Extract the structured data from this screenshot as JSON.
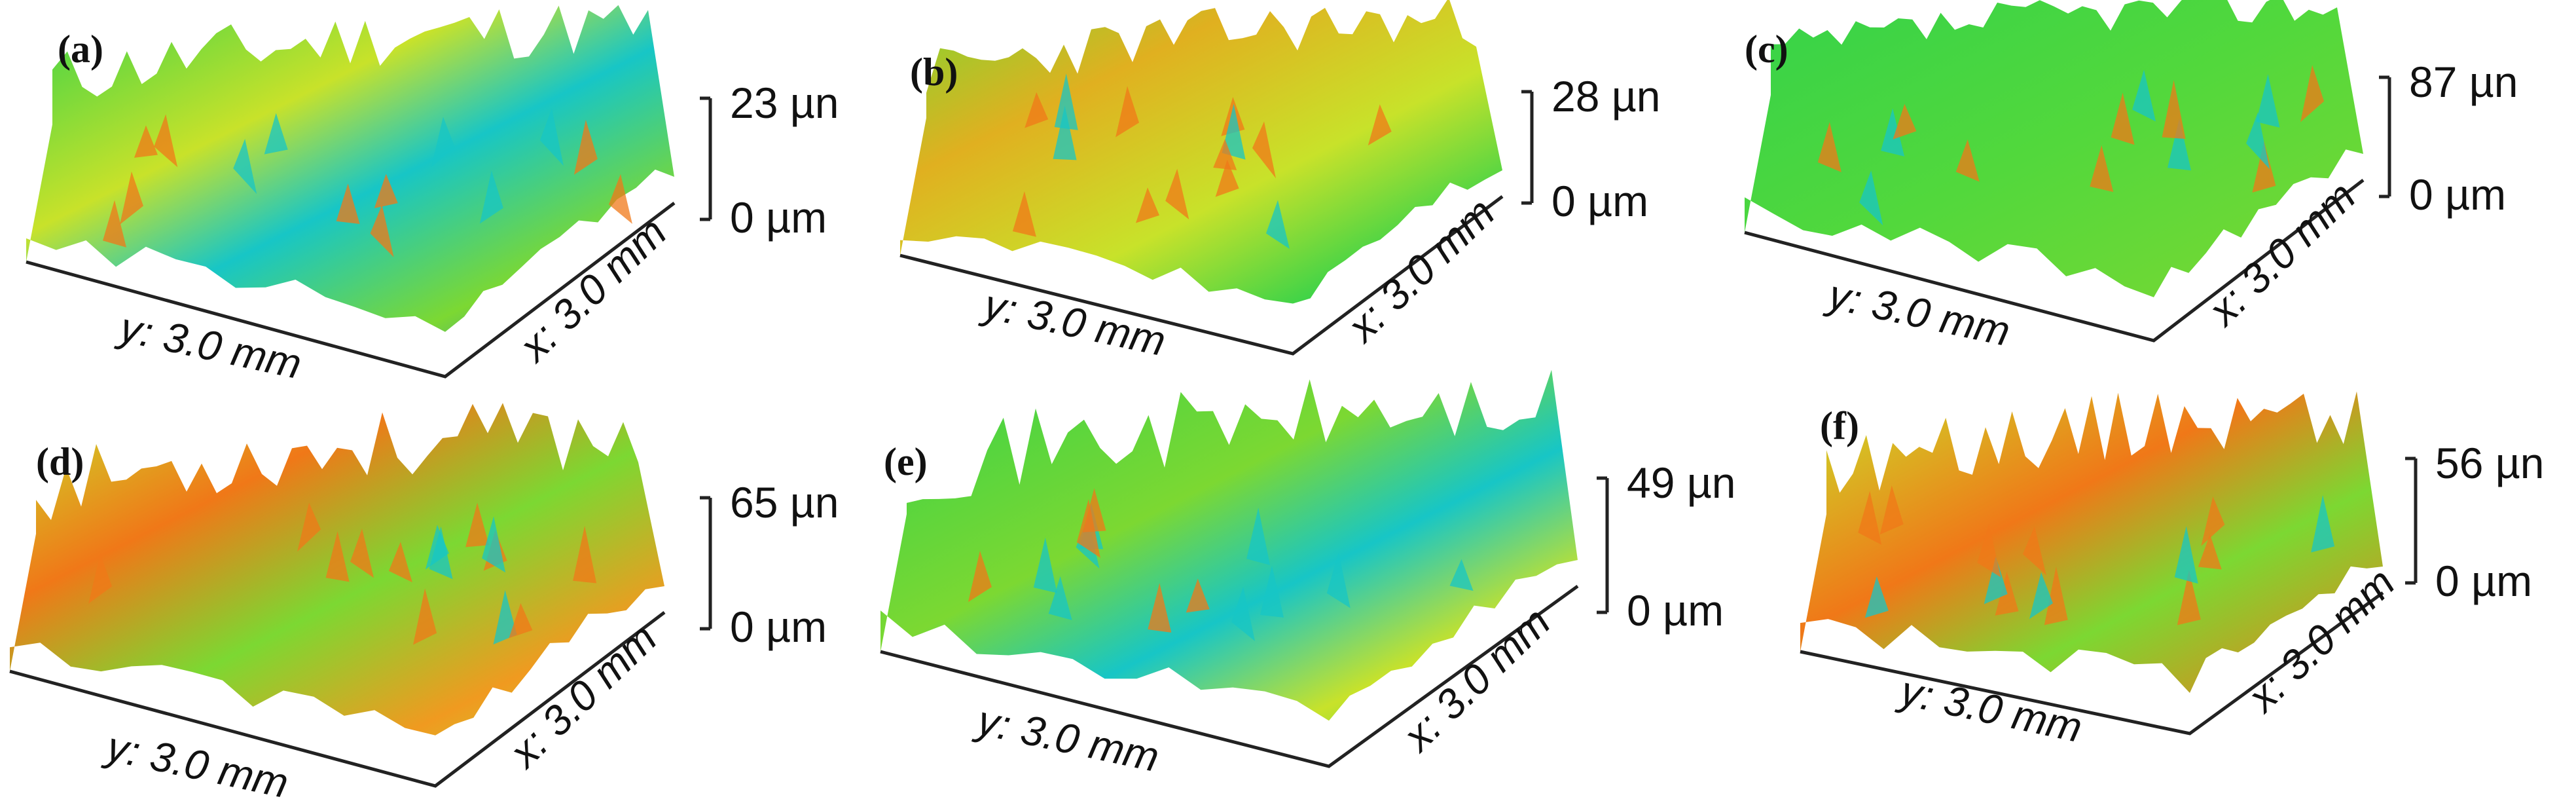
{
  "figure": {
    "panels": [
      {
        "label": "(a)",
        "zmax": "23 µn",
        "zmin": "0 µm",
        "y_axis": "y: 3.0 mm",
        "x_axis": "x: 3.0 mm"
      },
      {
        "label": "(b)",
        "zmax": "28 µn",
        "zmin": "0 µm",
        "y_axis": "y: 3.0 mm",
        "x_axis": "x: 3.0 mm"
      },
      {
        "label": "(c)",
        "zmax": "87 µn",
        "zmin": "0 µm",
        "y_axis": "y: 3.0 mm",
        "x_axis": "x: 3.0 mm"
      },
      {
        "label": "(d)",
        "zmax": "65 µn",
        "zmin": "0 µm",
        "y_axis": "y: 3.0 mm",
        "x_axis": "x: 3.0 mm"
      },
      {
        "label": "(e)",
        "zmax": "49 µn",
        "zmin": "0 µm",
        "y_axis": "y: 3.0 mm",
        "x_axis": "x: 3.0 mm"
      },
      {
        "label": "(f)",
        "zmax": "56 µn",
        "zmin": "0 µm",
        "y_axis": "y: 3.0 mm",
        "x_axis": "x: 3.0 mm"
      }
    ],
    "colors": {
      "low": "#1a3fd0",
      "mid_low": "#17c6c6",
      "mid": "#34d24a",
      "mid_high": "#c8e22a",
      "high": "#f07818",
      "peak": "#d21c1c"
    }
  }
}
